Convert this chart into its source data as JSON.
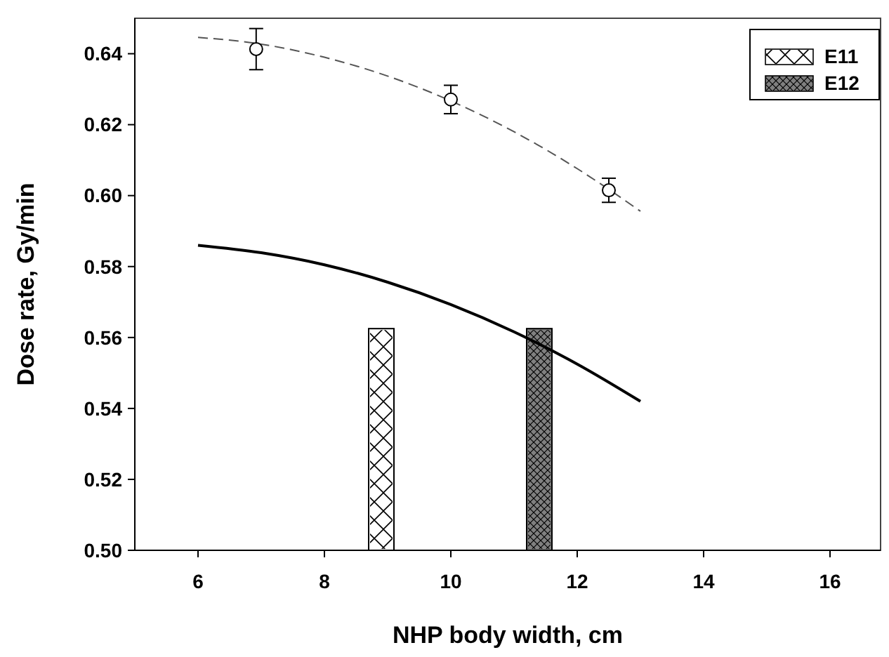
{
  "chart_data": {
    "type": "line",
    "xlabel": "NHP body width, cm",
    "ylabel": "Dose rate, Gy/min",
    "xlim": [
      5,
      16.8
    ],
    "xticks": [
      6,
      8,
      10,
      12,
      14,
      16
    ],
    "ylim": [
      0.5,
      0.65
    ],
    "yticks": [
      {
        "value": 0.5,
        "label": "0.50"
      },
      0.52,
      0.54,
      0.56,
      0.58,
      {
        "value": 0.6,
        "label": "0.60"
      },
      0.62,
      0.64
    ],
    "legend": "top right",
    "grid": false,
    "series": [
      {
        "type": "bar",
        "name": "E11",
        "color": "#ffffff",
        "x": [
          8.9
        ],
        "values": [
          0.5625
        ]
      },
      {
        "type": "bar",
        "name": "E12",
        "color": "#808080",
        "x": [
          11.4
        ],
        "values": [
          0.5625
        ]
      },
      {
        "color": "#555555",
        "line_style": "dashed",
        "x": [
          6,
          7,
          8,
          9,
          10,
          11,
          12,
          13
        ],
        "values": [
          0.6446,
          0.6427,
          0.639,
          0.6337,
          0.6267,
          0.618,
          0.6076,
          0.5956
        ]
      },
      {
        "type": "scatter",
        "color": "#000000",
        "marker": "circle",
        "x": [
          6.92,
          10,
          12.5
        ],
        "values": [
          0.6413,
          0.6271,
          0.6015
        ],
        "errors": [
          0.0058,
          0.004,
          0.0034
        ]
      },
      {
        "color": "#000000",
        "line_style": "solid",
        "x": [
          6,
          7,
          8,
          9,
          10,
          11,
          12,
          13
        ],
        "values": [
          0.586,
          0.5839,
          0.5805,
          0.5756,
          0.5693,
          0.5616,
          0.5525,
          0.542
        ]
      }
    ]
  }
}
